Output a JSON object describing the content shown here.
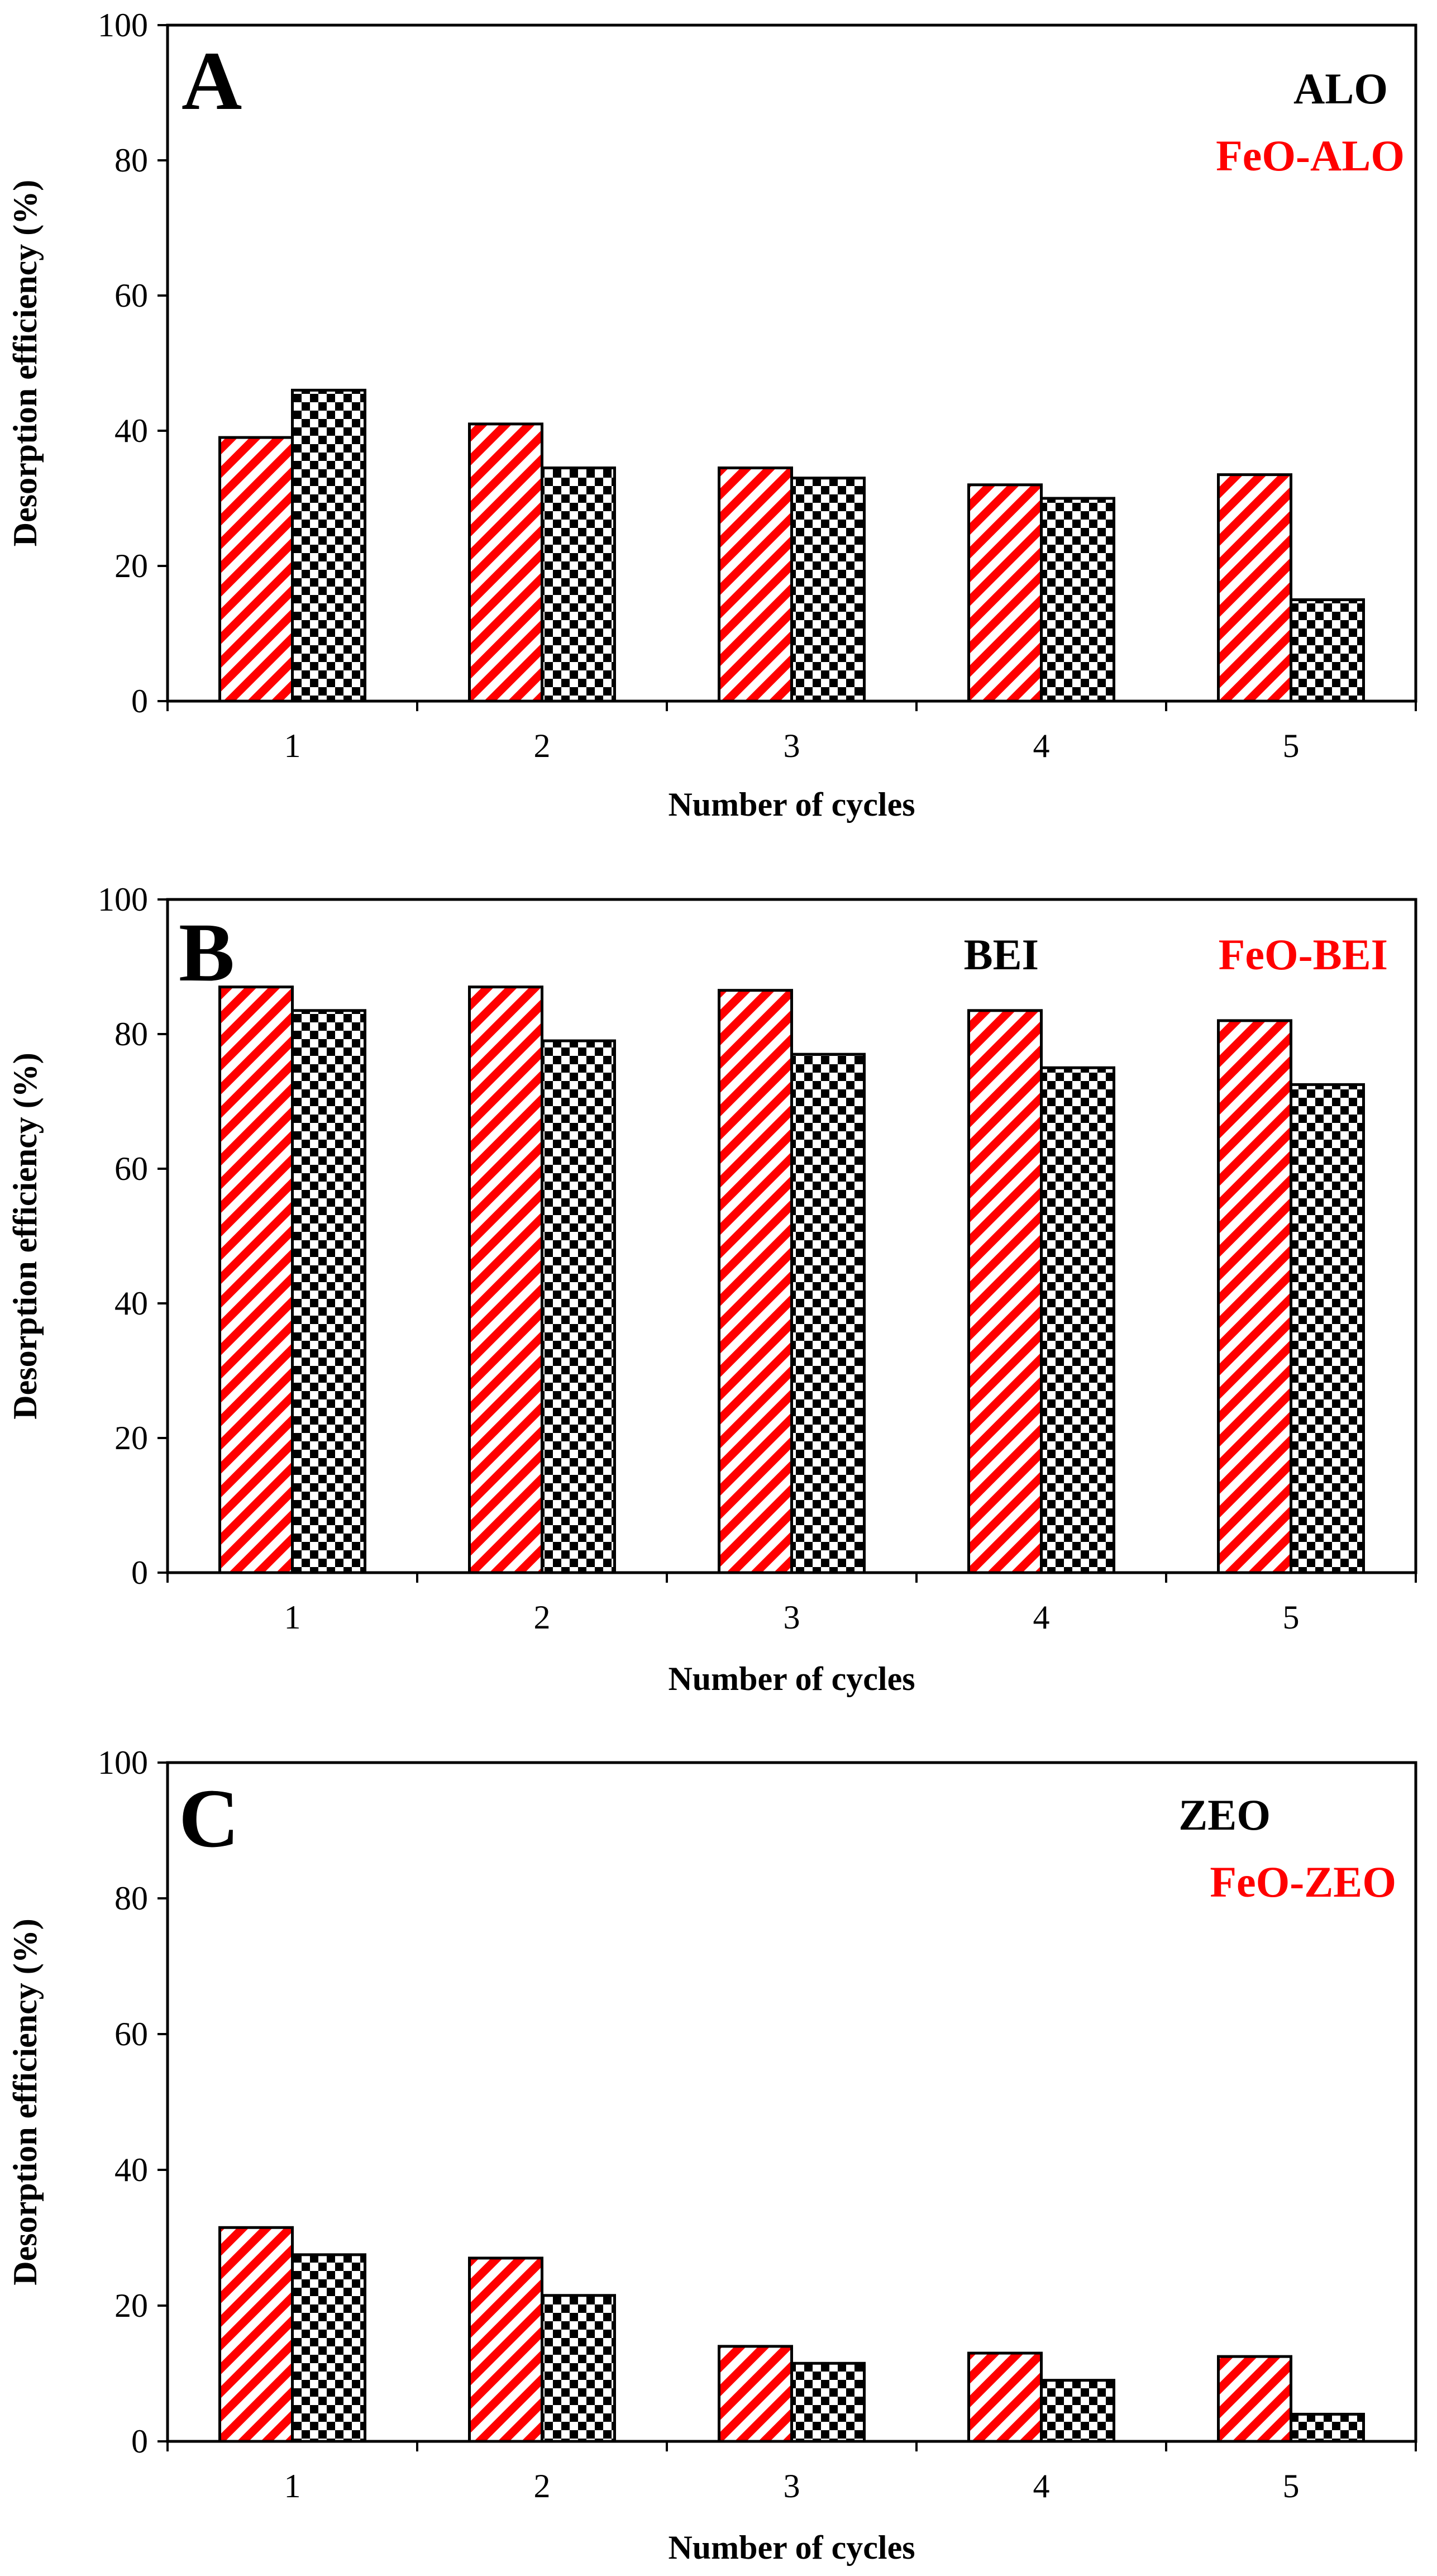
{
  "chart_data": [
    {
      "type": "bar",
      "panel_label": "A",
      "categories": [
        "1",
        "2",
        "3",
        "4",
        "5"
      ],
      "series": [
        {
          "name": "FeO-ALO",
          "color": "#ff0000",
          "pattern": "diagonal-stripes",
          "values": [
            39,
            41,
            34.5,
            32,
            33.5
          ]
        },
        {
          "name": "ALO",
          "color": "#000000",
          "pattern": "checkerboard",
          "values": [
            46,
            34.5,
            33,
            30,
            15
          ]
        }
      ],
      "xlabel": "Number of cycles",
      "ylabel": "Desorption efficiency (%)",
      "ylim": [
        0,
        100
      ],
      "yticks": [
        "0",
        "20",
        "40",
        "60",
        "80",
        "100"
      ],
      "legend_position": "top-right",
      "legend_layout": "stacked",
      "grid": false
    },
    {
      "type": "bar",
      "panel_label": "B",
      "categories": [
        "1",
        "2",
        "3",
        "4",
        "5"
      ],
      "series": [
        {
          "name": "FeO-BEI",
          "color": "#ff0000",
          "pattern": "diagonal-stripes",
          "values": [
            87,
            87,
            86.5,
            83.5,
            82
          ]
        },
        {
          "name": "BEI",
          "color": "#000000",
          "pattern": "checkerboard",
          "values": [
            83.5,
            79,
            77,
            75,
            72.5
          ]
        }
      ],
      "xlabel": "Number of cycles",
      "ylabel": "Desorption efficiency (%)",
      "ylim": [
        0,
        100
      ],
      "yticks": [
        "0",
        "20",
        "40",
        "60",
        "80",
        "100"
      ],
      "legend_position": "top-right",
      "legend_layout": "inline",
      "grid": false
    },
    {
      "type": "bar",
      "panel_label": "C",
      "categories": [
        "1",
        "2",
        "3",
        "4",
        "5"
      ],
      "series": [
        {
          "name": "FeO-ZEO",
          "color": "#ff0000",
          "pattern": "diagonal-stripes",
          "values": [
            31.5,
            27,
            14,
            13,
            12.5
          ]
        },
        {
          "name": "ZEO",
          "color": "#000000",
          "pattern": "checkerboard",
          "values": [
            27.5,
            21.5,
            11.5,
            9,
            4
          ]
        }
      ],
      "xlabel": "Number of cycles",
      "ylabel": "Desorption efficiency (%)",
      "ylim": [
        0,
        100
      ],
      "yticks": [
        "0",
        "20",
        "40",
        "60",
        "80",
        "100"
      ],
      "legend_position": "top-right",
      "legend_layout": "stacked",
      "grid": false
    }
  ]
}
